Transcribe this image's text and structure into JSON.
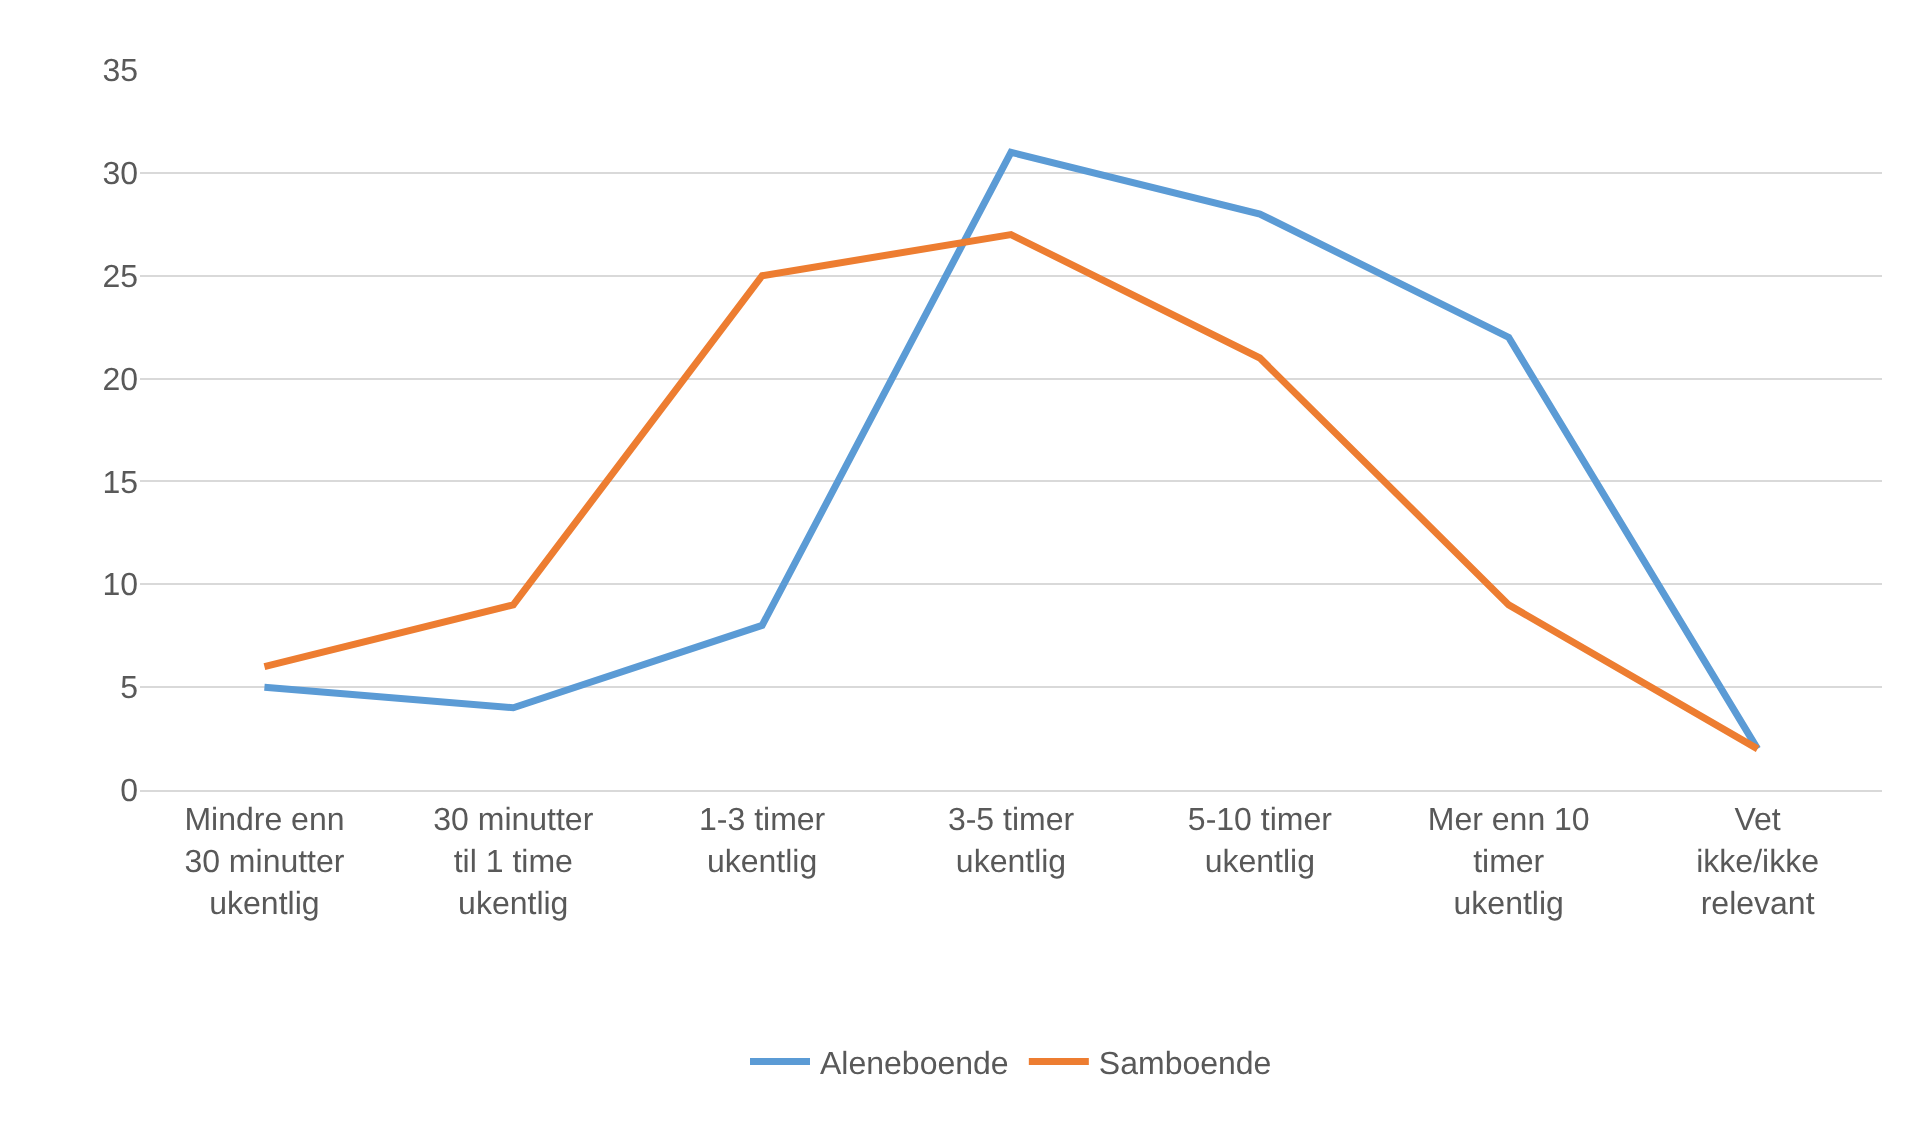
{
  "chart_data": {
    "type": "line",
    "categories": [
      "Mindre enn\n30 minutter\nukentlig",
      "30 minutter\ntil 1 time\nukentlig",
      "1-3 timer\nukentlig",
      "3-5 timer\nukentlig",
      "5-10 timer\nukentlig",
      "Mer enn 10\ntimer\nukentlig",
      "Vet\nikke/ikke\nrelevant"
    ],
    "series": [
      {
        "name": "Aleneboende",
        "color": "#5b9bd5",
        "values": [
          5,
          4,
          8,
          31,
          28,
          22,
          2
        ]
      },
      {
        "name": "Samboende",
        "color": "#ed7d31",
        "values": [
          6,
          9,
          25,
          27,
          21,
          9,
          2
        ]
      }
    ],
    "ylim": [
      0,
      35
    ],
    "yticks": [
      0,
      5,
      10,
      15,
      20,
      25,
      30,
      35
    ],
    "grid": "y",
    "legend": "bottom",
    "marker": "none",
    "line_style": "solid"
  }
}
